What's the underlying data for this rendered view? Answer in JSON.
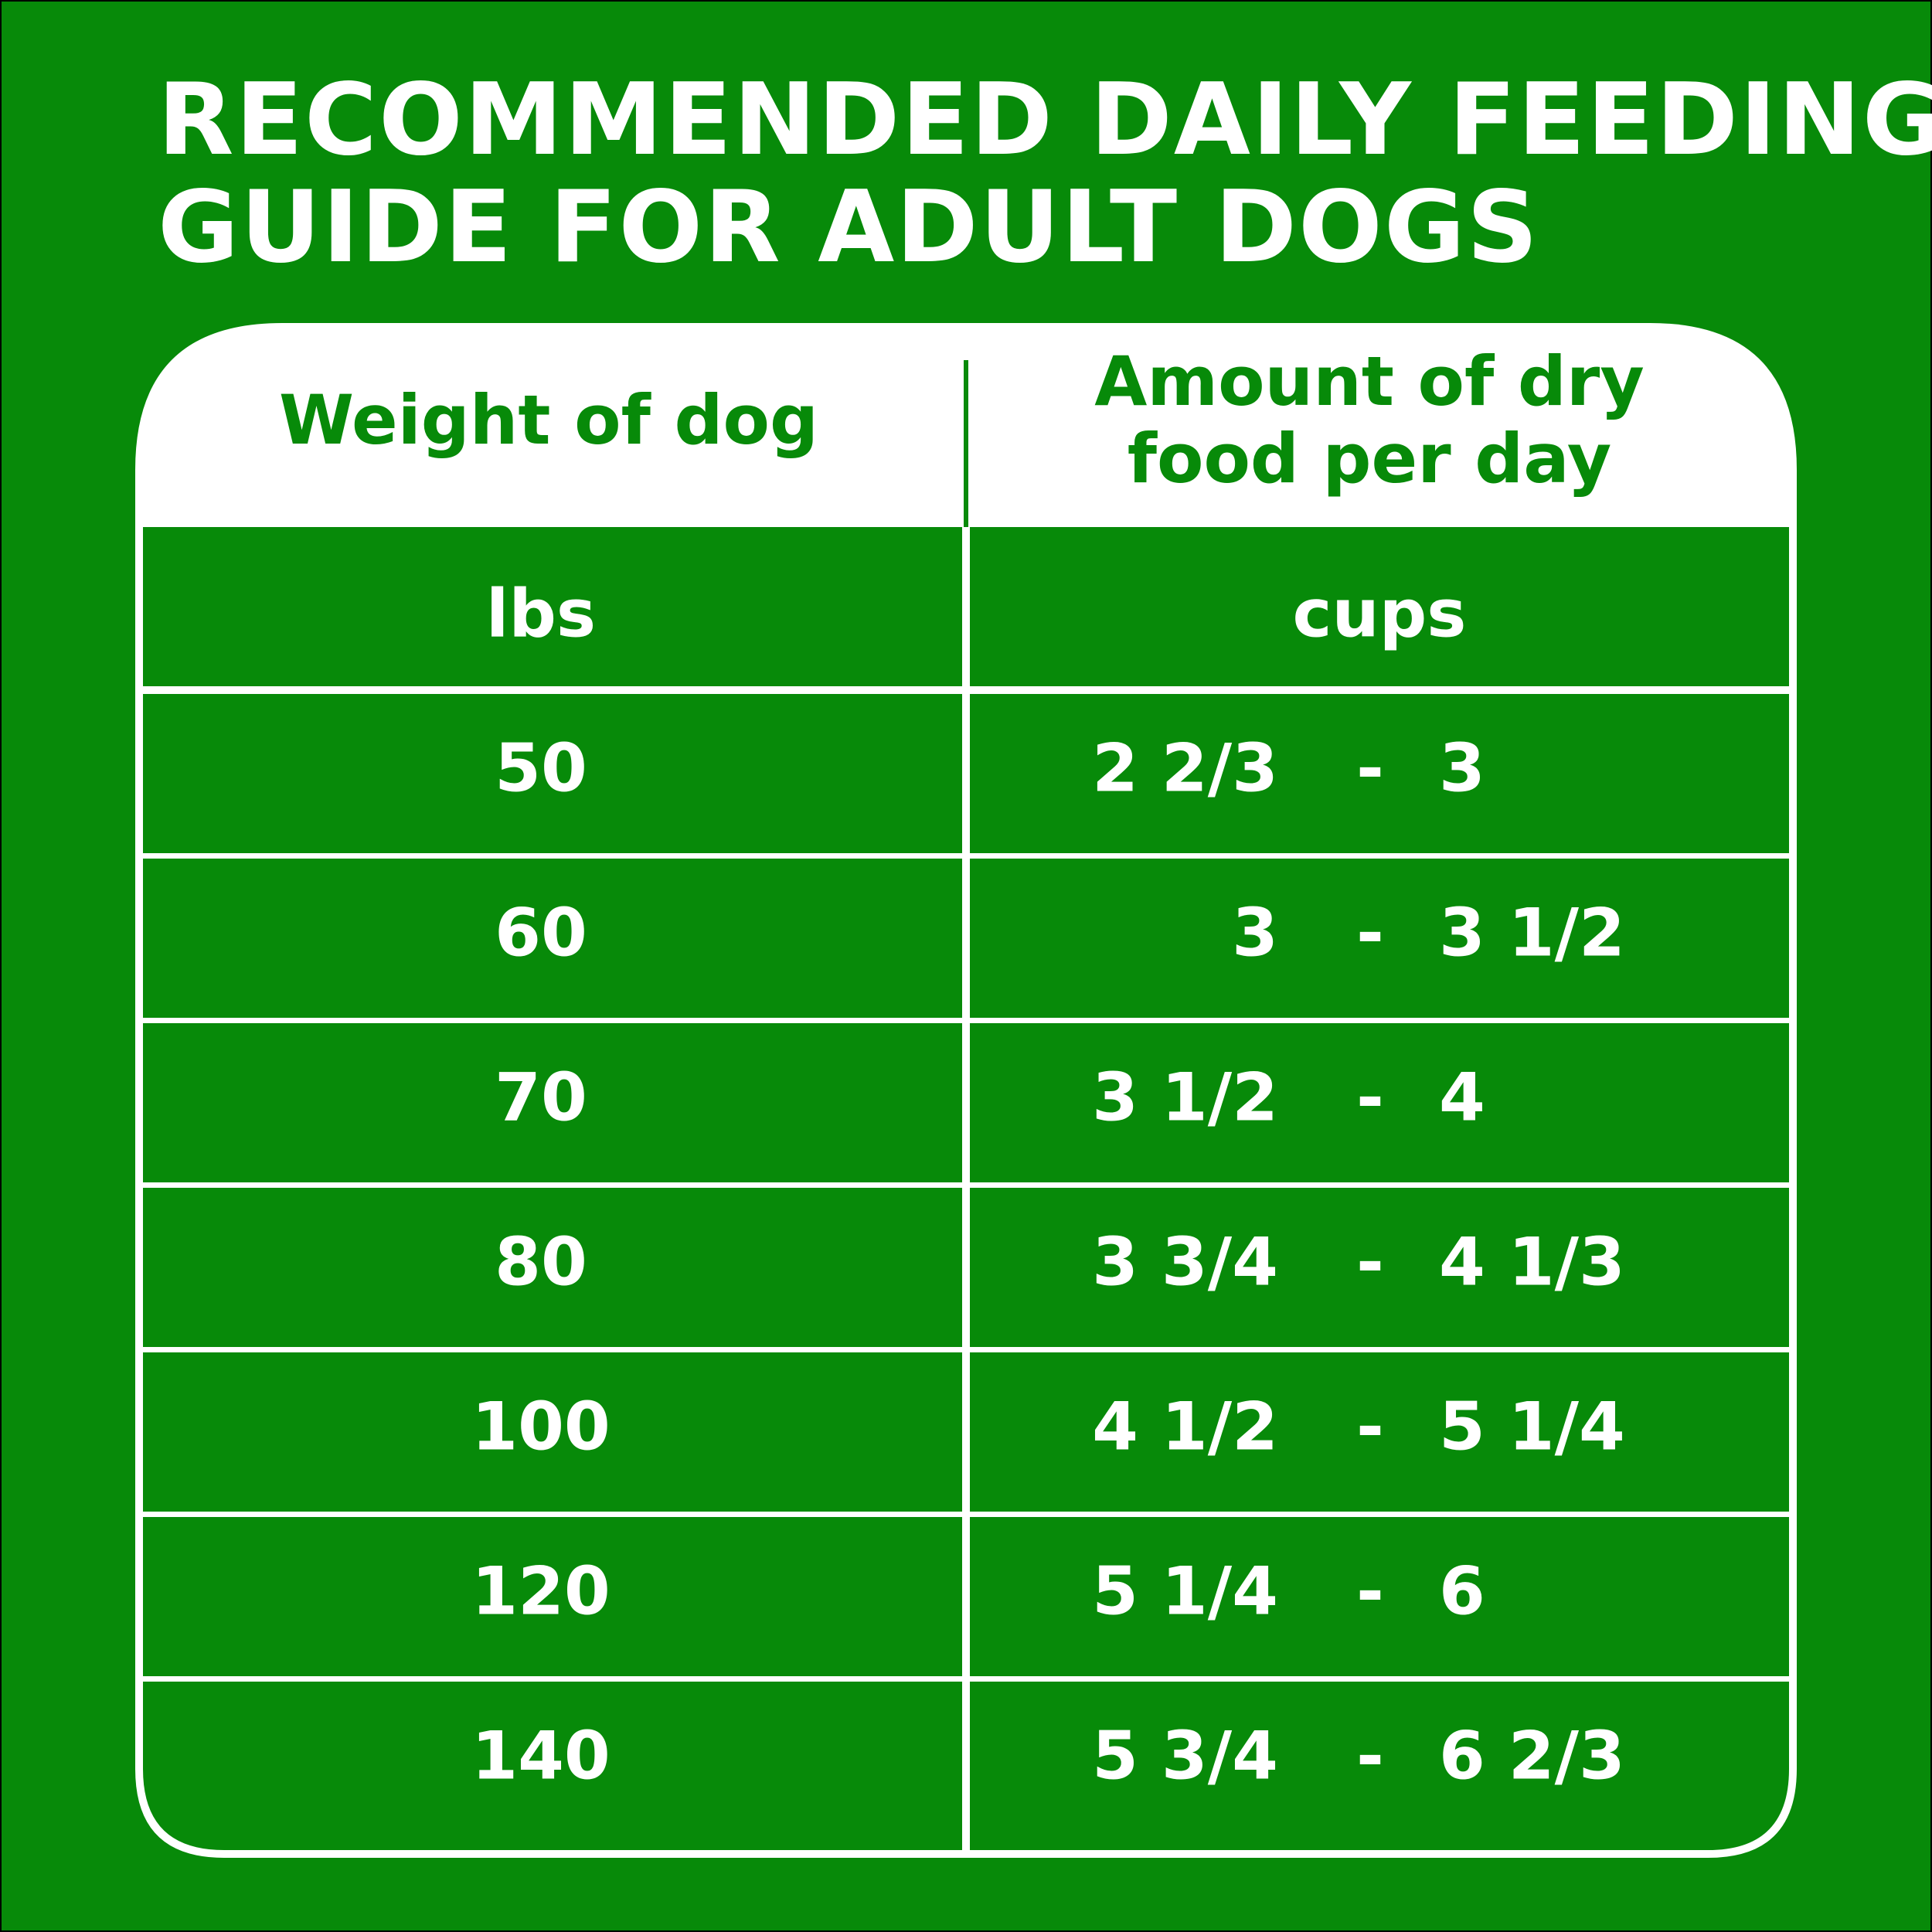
{
  "header": {
    "title_lines": [
      "RECOMMENDED DAILY FEEDING",
      "GUIDE FOR ADULT DOGS"
    ]
  },
  "table": {
    "columns": [
      "Weight of dog",
      [
        "Amount of dry",
        "food per day"
      ]
    ],
    "units": [
      "lbs",
      "cups"
    ],
    "separator": "-",
    "rows": [
      [
        "50",
        "2 2/3",
        "3"
      ],
      [
        "60",
        "3",
        "3 1/2"
      ],
      [
        "70",
        "3 1/2",
        "4"
      ],
      [
        "80",
        "3 3/4",
        "4 1/3"
      ],
      [
        "100",
        "4 1/2",
        "5 1/4"
      ],
      [
        "120",
        "5 1/4",
        "6"
      ],
      [
        "140",
        "5 3/4",
        "6 2/3"
      ]
    ]
  }
}
